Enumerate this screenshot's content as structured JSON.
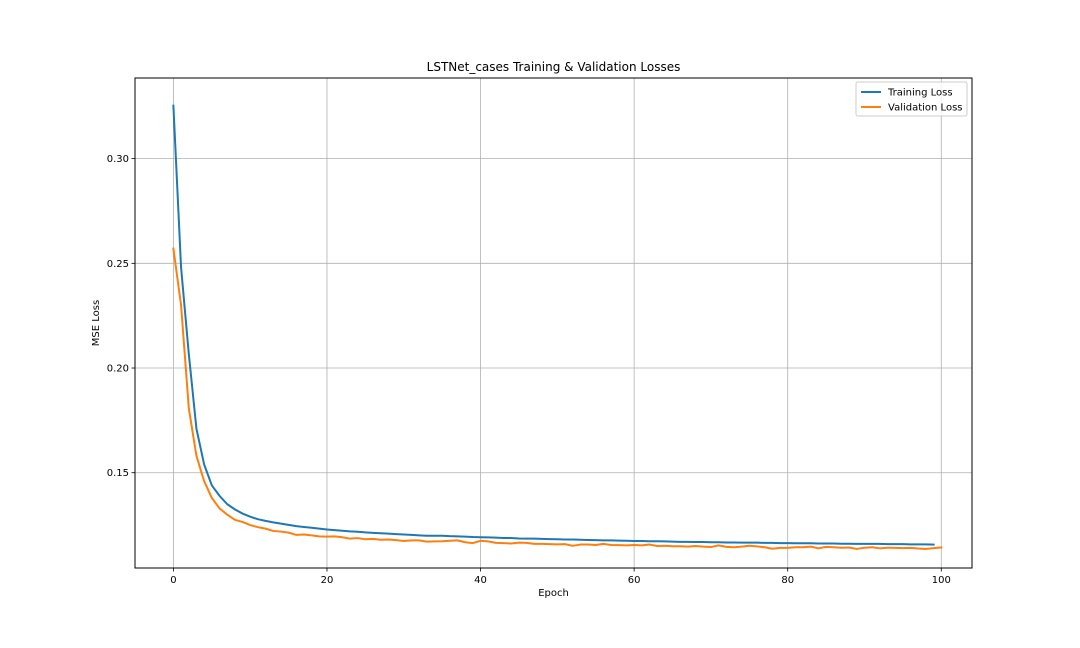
{
  "chart_data": {
    "type": "line",
    "title": "LSTNet_cases Training & Validation Losses",
    "xlabel": "Epoch",
    "ylabel": "MSE Loss",
    "xlim": [
      -5,
      104
    ],
    "ylim": [
      0.1045,
      0.3385
    ],
    "xticks": [
      0,
      20,
      40,
      60,
      80,
      100
    ],
    "yticks": [
      0.15,
      0.2,
      0.25,
      0.3
    ],
    "xtick_labels": [
      "0",
      "20",
      "40",
      "60",
      "80",
      "100"
    ],
    "ytick_labels": [
      "0.15",
      "0.20",
      "0.25",
      "0.30"
    ],
    "grid": true,
    "legend_position": "top-right",
    "series": [
      {
        "name": "Training Loss",
        "color": "#1f77b4",
        "values": [
          0.3253,
          0.248,
          0.207,
          0.171,
          0.154,
          0.144,
          0.139,
          0.135,
          0.1325,
          0.1305,
          0.129,
          0.1278,
          0.127,
          0.1263,
          0.1257,
          0.1251,
          0.1245,
          0.1241,
          0.1237,
          0.1233,
          0.1229,
          0.1226,
          0.1223,
          0.122,
          0.1218,
          0.1215,
          0.1213,
          0.1211,
          0.1209,
          0.1207,
          0.1205,
          0.1203,
          0.1201,
          0.1199,
          0.1199,
          0.1199,
          0.1197,
          0.1196,
          0.1195,
          0.1193,
          0.1192,
          0.1191,
          0.119,
          0.1188,
          0.1188,
          0.1186,
          0.1185,
          0.1185,
          0.1184,
          0.1183,
          0.1182,
          0.1181,
          0.1181,
          0.118,
          0.1179,
          0.1178,
          0.1177,
          0.1177,
          0.1176,
          0.1175,
          0.1174,
          0.1174,
          0.1173,
          0.1173,
          0.1172,
          0.1171,
          0.117,
          0.117,
          0.1169,
          0.1169,
          0.1168,
          0.1168,
          0.1167,
          0.1167,
          0.1166,
          0.1166,
          0.1166,
          0.1165,
          0.1165,
          0.1164,
          0.1164,
          0.1163,
          0.1163,
          0.1163,
          0.1162,
          0.1162,
          0.1162,
          0.1161,
          0.1161,
          0.116,
          0.116,
          0.116,
          0.116,
          0.1159,
          0.1159,
          0.1159,
          0.1158,
          0.1158,
          0.1158,
          0.1157
        ]
      },
      {
        "name": "Validation Loss",
        "color": "#ff7f0e",
        "values": [
          0.257,
          0.23,
          0.181,
          0.158,
          0.146,
          0.138,
          0.133,
          0.13,
          0.1275,
          0.1265,
          0.125,
          0.124,
          0.1233,
          0.1222,
          0.1219,
          0.1214,
          0.1203,
          0.1205,
          0.1201,
          0.1196,
          0.1195,
          0.1196,
          0.1192,
          0.1185,
          0.1188,
          0.1182,
          0.1184,
          0.118,
          0.1181,
          0.1178,
          0.1174,
          0.1177,
          0.1177,
          0.1171,
          0.1172,
          0.1173,
          0.1175,
          0.1177,
          0.1168,
          0.1164,
          0.1175,
          0.1172,
          0.1165,
          0.1164,
          0.1162,
          0.1166,
          0.1165,
          0.116,
          0.116,
          0.1159,
          0.1158,
          0.1159,
          0.1151,
          0.1157,
          0.1157,
          0.1155,
          0.116,
          0.1155,
          0.1154,
          0.1153,
          0.1155,
          0.1153,
          0.1157,
          0.115,
          0.1151,
          0.1149,
          0.1149,
          0.1147,
          0.115,
          0.1147,
          0.1145,
          0.1153,
          0.1146,
          0.1144,
          0.1147,
          0.1151,
          0.1148,
          0.1144,
          0.1137,
          0.1141,
          0.1141,
          0.1144,
          0.1144,
          0.1147,
          0.1139,
          0.1146,
          0.1144,
          0.1142,
          0.1143,
          0.1136,
          0.1142,
          0.1144,
          0.1139,
          0.1142,
          0.1141,
          0.114,
          0.1141,
          0.1138,
          0.1136,
          0.114,
          0.1143
        ]
      }
    ]
  }
}
